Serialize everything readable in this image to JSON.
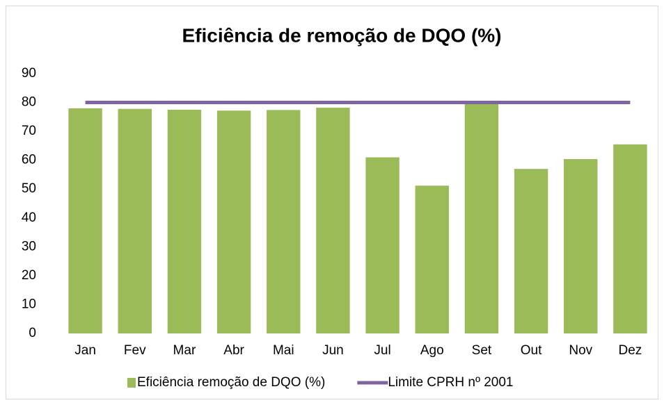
{
  "chart_data": {
    "type": "bar",
    "title": "Eficiência de remoção de DQO (%)",
    "categories": [
      "Jan",
      "Fev",
      "Mar",
      "Abr",
      "Mai",
      "Jun",
      "Jul",
      "Ago",
      "Set",
      "Out",
      "Nov",
      "Dez"
    ],
    "series": [
      {
        "name": "Eficiência remoção de DQO (%)",
        "type": "bar",
        "color": "#9bbb59",
        "values": [
          78,
          77.8,
          77.5,
          77.2,
          77.4,
          78.2,
          61,
          51.2,
          79.5,
          57,
          60.4,
          65.5
        ]
      },
      {
        "name": "Limite CPRH nº 2001",
        "type": "line",
        "color": "#8064a2",
        "values": [
          80,
          80,
          80,
          80,
          80,
          80,
          80,
          80,
          80,
          80,
          80,
          80
        ]
      }
    ],
    "ylim": [
      0,
      90
    ],
    "yticks": [
      0,
      10,
      20,
      30,
      40,
      50,
      60,
      70,
      80,
      90
    ],
    "grid": false,
    "legend": "bottom"
  }
}
